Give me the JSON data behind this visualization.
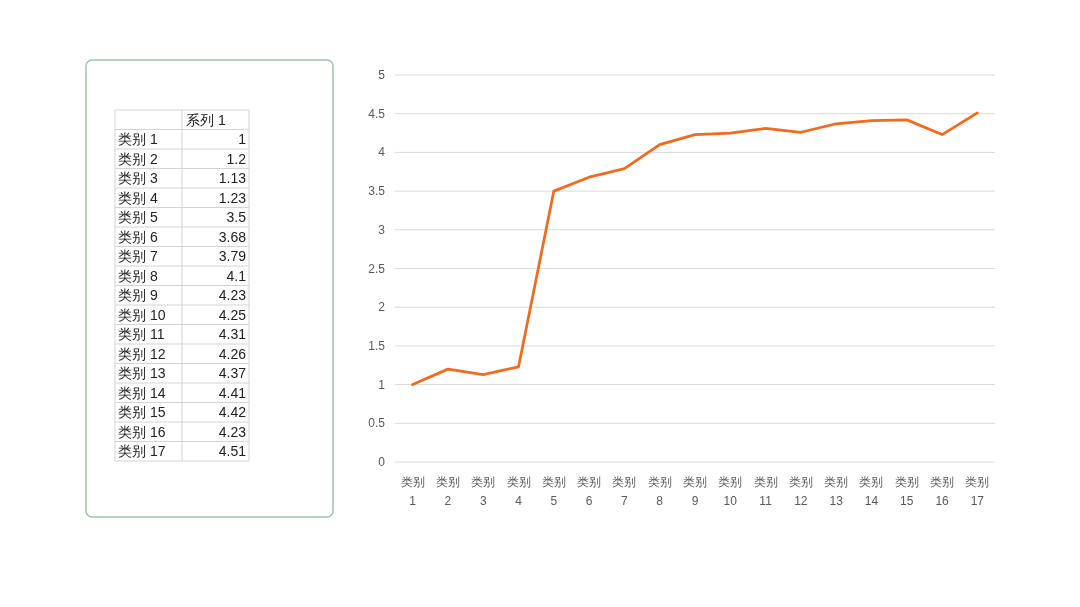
{
  "chart_data": [
    {
      "type": "other",
      "categories": [
        "类别 1",
        "类别 2",
        "类别 3",
        "类别 4",
        "类别 5",
        "类别 6",
        "类别 7",
        "类别 8",
        "类别 9",
        "类别 10",
        "类别 11",
        "类别 12",
        "类别 13",
        "类别 14",
        "类别 15",
        "类别 16",
        "类别 17"
      ],
      "series": [
        {
          "name": "系列 1",
          "values": [
            1,
            1.2,
            1.13,
            1.23,
            3.5,
            3.68,
            3.79,
            4.1,
            4.23,
            4.25,
            4.31,
            4.26,
            4.37,
            4.41,
            4.42,
            4.23,
            4.51
          ]
        }
      ],
      "data_labels": true
    },
    {
      "type": "line",
      "categories": [
        "类别 1",
        "类别 2",
        "类别 3",
        "类别 4",
        "类别 5",
        "类别 6",
        "类别 7",
        "类别 8",
        "类别 9",
        "类别 10",
        "类别 11",
        "类别 12",
        "类别 13",
        "类别 14",
        "类别 15",
        "类别 16",
        "类别 17"
      ],
      "series": [
        {
          "color": "#f26a1b",
          "values": [
            1,
            1.2,
            1.13,
            1.23,
            3.5,
            3.68,
            3.79,
            4.1,
            4.23,
            4.25,
            4.31,
            4.26,
            4.37,
            4.41,
            4.42,
            4.23,
            4.51
          ]
        }
      ],
      "ylim": [
        0,
        5
      ],
      "yticks": [
        0,
        0.5,
        1,
        1.5,
        2,
        2.5,
        3,
        3.5,
        4,
        4.5,
        5
      ],
      "grid": "y"
    }
  ]
}
